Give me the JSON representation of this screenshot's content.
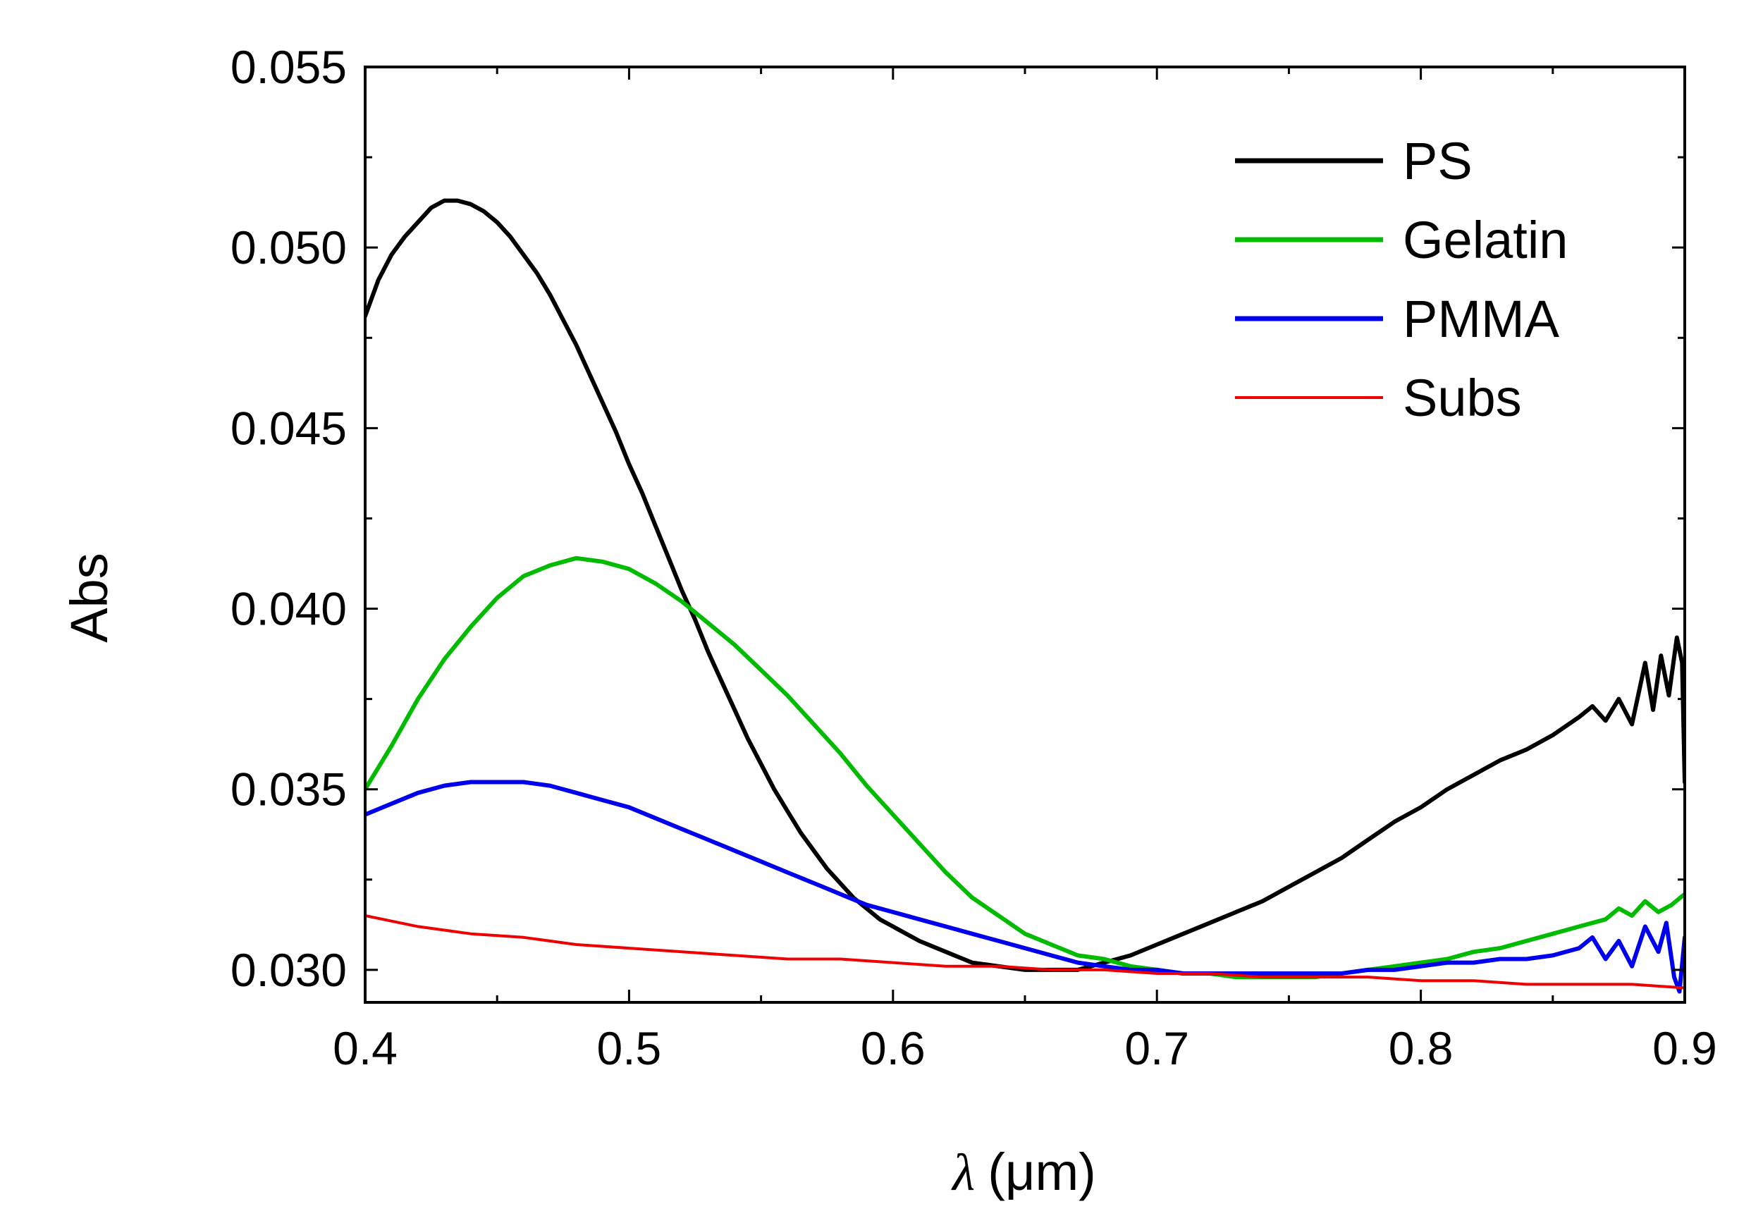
{
  "chart_data": {
    "type": "line",
    "xlabel_symbol": "λ",
    "xlabel_unit": "(μm)",
    "ylabel": "Abs",
    "xlim": [
      0.4,
      0.9
    ],
    "ylim": [
      0.0291,
      0.055
    ],
    "x_ticks": [
      0.4,
      0.5,
      0.6,
      0.7,
      0.8,
      0.9
    ],
    "x_tick_labels": [
      "0.4",
      "0.5",
      "0.6",
      "0.7",
      "0.8",
      "0.9"
    ],
    "x_minor_step": 0.05,
    "y_ticks": [
      0.03,
      0.035,
      0.04,
      0.045,
      0.05,
      0.055
    ],
    "y_tick_labels": [
      "0.030",
      "0.035",
      "0.040",
      "0.045",
      "0.050",
      "0.055"
    ],
    "y_minor_step": 0.0025,
    "grid": false,
    "legend_position": "top-right",
    "series": [
      {
        "name": "PS",
        "color": "#000000",
        "points": [
          [
            0.4,
            0.0481
          ],
          [
            0.405,
            0.0491
          ],
          [
            0.41,
            0.0498
          ],
          [
            0.415,
            0.0503
          ],
          [
            0.42,
            0.0507
          ],
          [
            0.425,
            0.0511
          ],
          [
            0.43,
            0.0513
          ],
          [
            0.435,
            0.0513
          ],
          [
            0.44,
            0.0512
          ],
          [
            0.445,
            0.051
          ],
          [
            0.45,
            0.0507
          ],
          [
            0.455,
            0.0503
          ],
          [
            0.46,
            0.0498
          ],
          [
            0.465,
            0.0493
          ],
          [
            0.47,
            0.0487
          ],
          [
            0.475,
            0.048
          ],
          [
            0.48,
            0.0473
          ],
          [
            0.485,
            0.0465
          ],
          [
            0.49,
            0.0457
          ],
          [
            0.495,
            0.0449
          ],
          [
            0.5,
            0.044
          ],
          [
            0.505,
            0.0432
          ],
          [
            0.51,
            0.0423
          ],
          [
            0.515,
            0.0414
          ],
          [
            0.52,
            0.0405
          ],
          [
            0.525,
            0.0397
          ],
          [
            0.53,
            0.0388
          ],
          [
            0.535,
            0.038
          ],
          [
            0.54,
            0.0372
          ],
          [
            0.545,
            0.0364
          ],
          [
            0.55,
            0.0357
          ],
          [
            0.555,
            0.035
          ],
          [
            0.56,
            0.0344
          ],
          [
            0.565,
            0.0338
          ],
          [
            0.57,
            0.0333
          ],
          [
            0.575,
            0.0328
          ],
          [
            0.58,
            0.0324
          ],
          [
            0.585,
            0.032
          ],
          [
            0.59,
            0.0317
          ],
          [
            0.595,
            0.0314
          ],
          [
            0.6,
            0.0312
          ],
          [
            0.61,
            0.0308
          ],
          [
            0.62,
            0.0305
          ],
          [
            0.63,
            0.0302
          ],
          [
            0.64,
            0.0301
          ],
          [
            0.65,
            0.03
          ],
          [
            0.66,
            0.03
          ],
          [
            0.67,
            0.03
          ],
          [
            0.68,
            0.0302
          ],
          [
            0.69,
            0.0304
          ],
          [
            0.7,
            0.0307
          ],
          [
            0.71,
            0.031
          ],
          [
            0.72,
            0.0313
          ],
          [
            0.73,
            0.0316
          ],
          [
            0.74,
            0.0319
          ],
          [
            0.75,
            0.0323
          ],
          [
            0.76,
            0.0327
          ],
          [
            0.77,
            0.0331
          ],
          [
            0.78,
            0.0336
          ],
          [
            0.79,
            0.0341
          ],
          [
            0.8,
            0.0345
          ],
          [
            0.81,
            0.035
          ],
          [
            0.82,
            0.0354
          ],
          [
            0.83,
            0.0358
          ],
          [
            0.84,
            0.0361
          ],
          [
            0.85,
            0.0365
          ],
          [
            0.86,
            0.037
          ],
          [
            0.865,
            0.0373
          ],
          [
            0.87,
            0.0369
          ],
          [
            0.875,
            0.0375
          ],
          [
            0.88,
            0.0368
          ],
          [
            0.885,
            0.0385
          ],
          [
            0.888,
            0.0372
          ],
          [
            0.891,
            0.0387
          ],
          [
            0.894,
            0.0376
          ],
          [
            0.897,
            0.0392
          ],
          [
            0.899,
            0.0385
          ],
          [
            0.9,
            0.0352
          ]
        ]
      },
      {
        "name": "Gelatin",
        "color": "#00bb00",
        "points": [
          [
            0.4,
            0.035
          ],
          [
            0.41,
            0.0362
          ],
          [
            0.42,
            0.0375
          ],
          [
            0.43,
            0.0386
          ],
          [
            0.44,
            0.0395
          ],
          [
            0.45,
            0.0403
          ],
          [
            0.46,
            0.0409
          ],
          [
            0.47,
            0.0412
          ],
          [
            0.48,
            0.0414
          ],
          [
            0.49,
            0.0413
          ],
          [
            0.5,
            0.0411
          ],
          [
            0.51,
            0.0407
          ],
          [
            0.52,
            0.0402
          ],
          [
            0.53,
            0.0396
          ],
          [
            0.54,
            0.039
          ],
          [
            0.55,
            0.0383
          ],
          [
            0.56,
            0.0376
          ],
          [
            0.57,
            0.0368
          ],
          [
            0.58,
            0.036
          ],
          [
            0.59,
            0.0351
          ],
          [
            0.6,
            0.0343
          ],
          [
            0.61,
            0.0335
          ],
          [
            0.62,
            0.0327
          ],
          [
            0.63,
            0.032
          ],
          [
            0.64,
            0.0315
          ],
          [
            0.65,
            0.031
          ],
          [
            0.66,
            0.0307
          ],
          [
            0.67,
            0.0304
          ],
          [
            0.68,
            0.0303
          ],
          [
            0.69,
            0.0301
          ],
          [
            0.7,
            0.03
          ],
          [
            0.71,
            0.0299
          ],
          [
            0.72,
            0.0299
          ],
          [
            0.73,
            0.0298
          ],
          [
            0.74,
            0.0298
          ],
          [
            0.75,
            0.0298
          ],
          [
            0.76,
            0.0298
          ],
          [
            0.77,
            0.0299
          ],
          [
            0.78,
            0.03
          ],
          [
            0.79,
            0.0301
          ],
          [
            0.8,
            0.0302
          ],
          [
            0.81,
            0.0303
          ],
          [
            0.82,
            0.0305
          ],
          [
            0.83,
            0.0306
          ],
          [
            0.84,
            0.0308
          ],
          [
            0.85,
            0.031
          ],
          [
            0.86,
            0.0312
          ],
          [
            0.87,
            0.0314
          ],
          [
            0.875,
            0.0317
          ],
          [
            0.88,
            0.0315
          ],
          [
            0.885,
            0.0319
          ],
          [
            0.89,
            0.0316
          ],
          [
            0.895,
            0.0318
          ],
          [
            0.9,
            0.0321
          ]
        ]
      },
      {
        "name": "PMMA",
        "color": "#0000ee",
        "points": [
          [
            0.4,
            0.0343
          ],
          [
            0.41,
            0.0346
          ],
          [
            0.42,
            0.0349
          ],
          [
            0.43,
            0.0351
          ],
          [
            0.44,
            0.0352
          ],
          [
            0.45,
            0.0352
          ],
          [
            0.46,
            0.0352
          ],
          [
            0.47,
            0.0351
          ],
          [
            0.48,
            0.0349
          ],
          [
            0.49,
            0.0347
          ],
          [
            0.5,
            0.0345
          ],
          [
            0.51,
            0.0342
          ],
          [
            0.52,
            0.0339
          ],
          [
            0.53,
            0.0336
          ],
          [
            0.54,
            0.0333
          ],
          [
            0.55,
            0.033
          ],
          [
            0.56,
            0.0327
          ],
          [
            0.57,
            0.0324
          ],
          [
            0.58,
            0.0321
          ],
          [
            0.59,
            0.0318
          ],
          [
            0.6,
            0.0316
          ],
          [
            0.61,
            0.0314
          ],
          [
            0.62,
            0.0312
          ],
          [
            0.63,
            0.031
          ],
          [
            0.64,
            0.0308
          ],
          [
            0.65,
            0.0306
          ],
          [
            0.66,
            0.0304
          ],
          [
            0.67,
            0.0302
          ],
          [
            0.68,
            0.0301
          ],
          [
            0.69,
            0.03
          ],
          [
            0.7,
            0.03
          ],
          [
            0.71,
            0.0299
          ],
          [
            0.72,
            0.0299
          ],
          [
            0.73,
            0.0299
          ],
          [
            0.74,
            0.0299
          ],
          [
            0.75,
            0.0299
          ],
          [
            0.76,
            0.0299
          ],
          [
            0.77,
            0.0299
          ],
          [
            0.78,
            0.03
          ],
          [
            0.79,
            0.03
          ],
          [
            0.8,
            0.0301
          ],
          [
            0.81,
            0.0302
          ],
          [
            0.82,
            0.0302
          ],
          [
            0.83,
            0.0303
          ],
          [
            0.84,
            0.0303
          ],
          [
            0.85,
            0.0304
          ],
          [
            0.86,
            0.0306
          ],
          [
            0.865,
            0.0309
          ],
          [
            0.87,
            0.0303
          ],
          [
            0.875,
            0.0308
          ],
          [
            0.88,
            0.0301
          ],
          [
            0.885,
            0.0312
          ],
          [
            0.89,
            0.0305
          ],
          [
            0.893,
            0.0313
          ],
          [
            0.896,
            0.0298
          ],
          [
            0.898,
            0.0294
          ],
          [
            0.9,
            0.0309
          ]
        ]
      },
      {
        "name": "Subs",
        "color": "#ee0000",
        "points": [
          [
            0.4,
            0.0315
          ],
          [
            0.42,
            0.0312
          ],
          [
            0.44,
            0.031
          ],
          [
            0.46,
            0.0309
          ],
          [
            0.48,
            0.0307
          ],
          [
            0.5,
            0.0306
          ],
          [
            0.52,
            0.0305
          ],
          [
            0.54,
            0.0304
          ],
          [
            0.56,
            0.0303
          ],
          [
            0.58,
            0.0303
          ],
          [
            0.6,
            0.0302
          ],
          [
            0.62,
            0.0301
          ],
          [
            0.64,
            0.0301
          ],
          [
            0.66,
            0.03
          ],
          [
            0.68,
            0.03
          ],
          [
            0.7,
            0.0299
          ],
          [
            0.72,
            0.0299
          ],
          [
            0.74,
            0.0298
          ],
          [
            0.76,
            0.0298
          ],
          [
            0.78,
            0.0298
          ],
          [
            0.8,
            0.0297
          ],
          [
            0.82,
            0.0297
          ],
          [
            0.84,
            0.0296
          ],
          [
            0.86,
            0.0296
          ],
          [
            0.88,
            0.0296
          ],
          [
            0.9,
            0.0295
          ]
        ]
      }
    ]
  }
}
